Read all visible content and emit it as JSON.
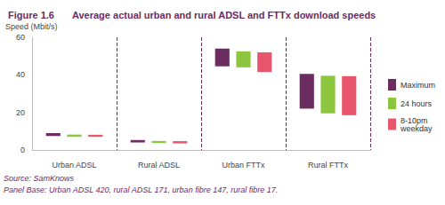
{
  "chart_data": {
    "type": "bar",
    "title": "Figure 1.6",
    "subtitle": "Average actual urban and rural ADSL and FTTx download speeds",
    "y_label": "Speed (Mbit/s)",
    "categories": [
      "Urban ADSL",
      "Rural ADSL",
      "Urban FTTx",
      "Rural FTTx"
    ],
    "series": [
      {
        "name": "Maximum",
        "color": "#6b2c5f",
        "values": [
          [
            7.5,
            9
          ],
          [
            4,
            5.3
          ],
          [
            44.5,
            54
          ],
          [
            22,
            40.5
          ]
        ]
      },
      {
        "name": "24 hours",
        "color": "#8cc63f",
        "values": [
          [
            7,
            8.2
          ],
          [
            3.7,
            4.8
          ],
          [
            44,
            52.5
          ],
          [
            19.5,
            39.5
          ]
        ]
      },
      {
        "name": "8-10pm weekday",
        "color": "#e8566b",
        "values": [
          [
            7,
            8.1
          ],
          [
            3.5,
            4.7
          ],
          [
            41.5,
            52
          ],
          [
            18.5,
            39.3
          ]
        ]
      }
    ],
    "ylim": [
      0,
      60
    ],
    "yticks": [
      0,
      20,
      40,
      60
    ],
    "grid": false,
    "legend": "right",
    "annotations": [
      "Source: SamKnows",
      "Panel Base: Urban ADSL 420, rural ADSL 171, urban fibre 147, rural fibre 17."
    ]
  }
}
